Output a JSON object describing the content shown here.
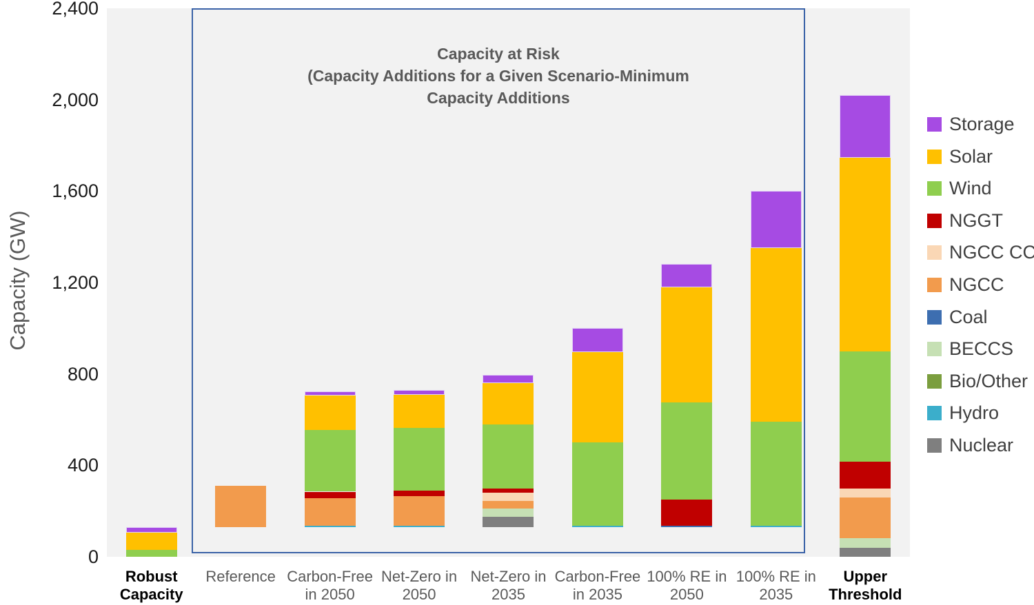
{
  "chart_data": {
    "type": "bar",
    "stacked": true,
    "title_lines": [
      "Capacity at Risk",
      "(Capacity Additions for a Given Scenario-Minimum",
      "Capacity Additions"
    ],
    "ylabel": "Capacity (GW)",
    "ylim": [
      0,
      2400
    ],
    "yticks": [
      {
        "value": 0,
        "label": "0"
      },
      {
        "value": 400,
        "label": "400"
      },
      {
        "value": 800,
        "label": "800"
      },
      {
        "value": 1200,
        "label": "1,200"
      },
      {
        "value": 1600,
        "label": "1,600"
      },
      {
        "value": 2000,
        "label": "2,000"
      },
      {
        "value": 2400,
        "label": "2,400"
      }
    ],
    "grid": false,
    "plot_background": "#F2F2F2",
    "legend_position": "right",
    "annotation_box": {
      "border_color": "#3A62A7",
      "covers_categories": [
        "Reference",
        "100% RE in 2035"
      ]
    },
    "categories": [
      {
        "label": "Robust Capacity",
        "bold": true
      },
      {
        "label": "Reference",
        "bold": false
      },
      {
        "label": "Carbon-Free in 2050",
        "bold": false
      },
      {
        "label": "Net-Zero in 2050",
        "bold": false
      },
      {
        "label": "Net-Zero in 2035",
        "bold": false
      },
      {
        "label": "Carbon-Free in 2035",
        "bold": false
      },
      {
        "label": "100% RE in 2050",
        "bold": false
      },
      {
        "label": "100% RE in 2035",
        "bold": false
      },
      {
        "label": "Upper Threshold",
        "bold": true
      }
    ],
    "bar_base_gw": [
      0,
      130,
      130,
      130,
      130,
      130,
      130,
      130,
      0
    ],
    "series": [
      {
        "name": "Storage",
        "color": "#A64BE3",
        "edge": "#E2D0F5",
        "values": [
          25,
          0,
          20,
          20,
          35,
          105,
          100,
          250,
          275
        ]
      },
      {
        "name": "Solar",
        "color": "#FFC000",
        "values": [
          75,
          0,
          150,
          145,
          180,
          395,
          505,
          760,
          845
        ]
      },
      {
        "name": "Wind",
        "color": "#8FCE4E",
        "values": [
          30,
          0,
          270,
          275,
          280,
          365,
          425,
          455,
          485
        ]
      },
      {
        "name": "NGGT",
        "color": "#C00000",
        "values": [
          0,
          0,
          30,
          25,
          20,
          0,
          115,
          0,
          115
        ]
      },
      {
        "name": "NGCC CCS",
        "color": "#FAD7B5",
        "values": [
          0,
          0,
          0,
          0,
          35,
          0,
          0,
          0,
          40
        ]
      },
      {
        "name": "NGCC",
        "color": "#F29B4D",
        "values": [
          0,
          180,
          120,
          130,
          35,
          0,
          0,
          0,
          180
        ]
      },
      {
        "name": "Coal",
        "color": "#3D6EB0",
        "values": [
          0,
          0,
          0,
          0,
          0,
          0,
          5,
          0,
          0
        ]
      },
      {
        "name": "BECCS",
        "color": "#C6E0B4",
        "values": [
          0,
          0,
          0,
          0,
          35,
          0,
          0,
          0,
          40
        ]
      },
      {
        "name": "Bio/Other",
        "color": "#7B9E3E",
        "values": [
          0,
          0,
          0,
          0,
          0,
          0,
          0,
          0,
          0
        ]
      },
      {
        "name": "Hydro",
        "color": "#3BAECB",
        "values": [
          0,
          0,
          5,
          5,
          0,
          5,
          0,
          5,
          0
        ]
      },
      {
        "name": "Nuclear",
        "color": "#7F7F7F",
        "values": [
          0,
          0,
          0,
          0,
          45,
          0,
          0,
          0,
          40
        ]
      }
    ]
  }
}
